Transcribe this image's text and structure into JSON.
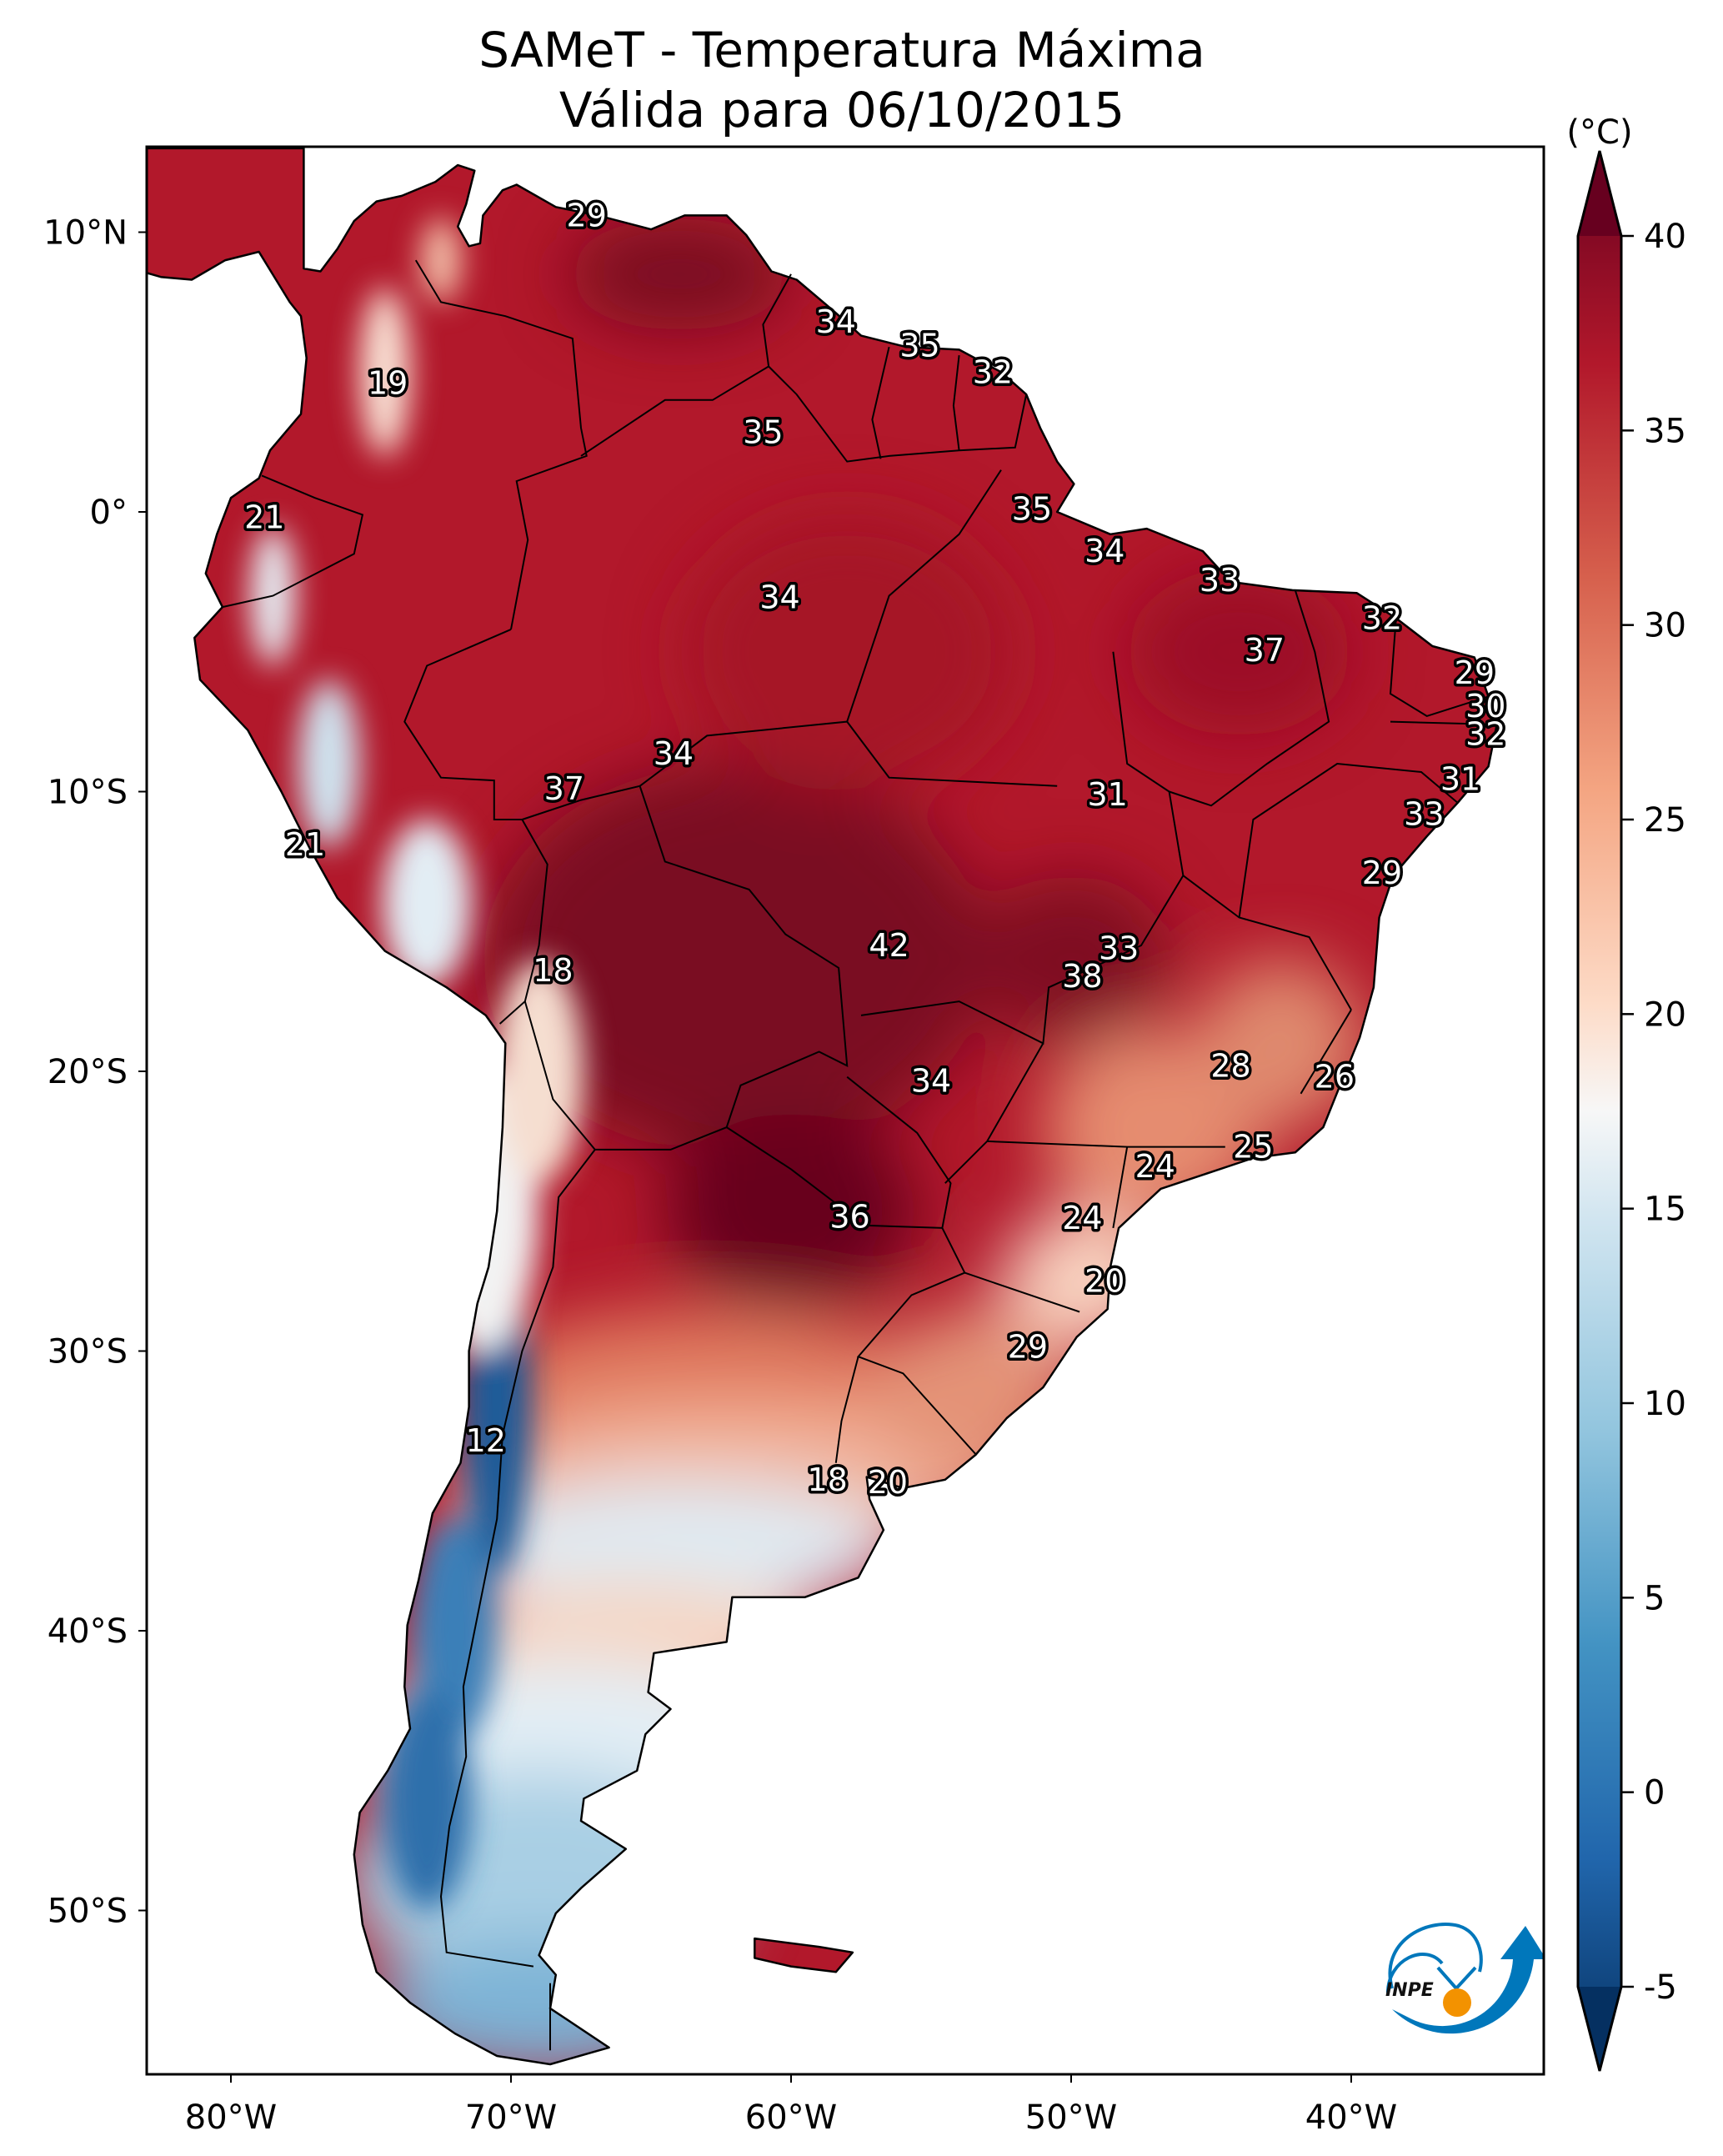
{
  "chart_data": {
    "type": "heatmap",
    "subtype": "geographic-map",
    "title": "SAMeT - Temperatura Máxima",
    "subtitle": "Válida para 06/10/2015",
    "colorbar": {
      "label": "(°C)",
      "min": -5,
      "max": 40,
      "ticks": [
        40,
        35,
        30,
        25,
        20,
        15,
        10,
        5,
        0,
        -5
      ],
      "tick_labels": [
        "40",
        "35",
        "30",
        "25",
        "20",
        "15",
        "10",
        "5",
        "0",
        "-5"
      ],
      "extend": "both",
      "colormap": "RdBu_r",
      "colors": {
        "-5": "#053061",
        "0": "#2166ac",
        "5": "#4393c3",
        "10": "#92c5de",
        "15": "#d1e5f0",
        "17.5": "#f7f7f7",
        "20": "#fddbc7",
        "25": "#f4a582",
        "30": "#d6604d",
        "35": "#b2182b",
        "40": "#67001f"
      }
    },
    "x_axis": {
      "range_lon": [
        -83,
        -33
      ],
      "ticks": [
        -80,
        -70,
        -60,
        -50,
        -40
      ],
      "tick_labels": [
        "80°W",
        "70°W",
        "60°W",
        "50°W",
        "40°W"
      ]
    },
    "y_axis": {
      "range_lat": [
        13,
        -56
      ],
      "ticks": [
        10,
        0,
        -10,
        -20,
        -30,
        -40,
        -50
      ],
      "tick_labels": [
        "10°N",
        "0°",
        "10°S",
        "20°S",
        "30°S",
        "40°S",
        "50°S"
      ]
    },
    "grid": false,
    "point_labels": [
      {
        "value": 29,
        "lon": -67.3,
        "lat": 10.6
      },
      {
        "value": 34,
        "lon": -58.4,
        "lat": 6.8
      },
      {
        "value": 35,
        "lon": -55.4,
        "lat": 5.95
      },
      {
        "value": 32,
        "lon": -52.8,
        "lat": 5.0
      },
      {
        "value": 19,
        "lon": -74.4,
        "lat": 4.6
      },
      {
        "value": 35,
        "lon": -61.0,
        "lat": 2.85
      },
      {
        "value": 21,
        "lon": -78.8,
        "lat": -0.2
      },
      {
        "value": 35,
        "lon": -51.4,
        "lat": 0.1
      },
      {
        "value": 34,
        "lon": -48.8,
        "lat": -1.4
      },
      {
        "value": 34,
        "lon": -60.4,
        "lat": -3.05
      },
      {
        "value": 33,
        "lon": -44.7,
        "lat": -2.45
      },
      {
        "value": 32,
        "lon": -38.9,
        "lat": -3.8
      },
      {
        "value": 37,
        "lon": -43.1,
        "lat": -4.95
      },
      {
        "value": 29,
        "lon": -35.6,
        "lat": -5.75
      },
      {
        "value": 30,
        "lon": -35.2,
        "lat": -6.95
      },
      {
        "value": 32,
        "lon": -35.2,
        "lat": -7.95
      },
      {
        "value": 34,
        "lon": -64.2,
        "lat": -8.65
      },
      {
        "value": 37,
        "lon": -68.1,
        "lat": -9.9
      },
      {
        "value": 31,
        "lon": -48.7,
        "lat": -10.1
      },
      {
        "value": 31,
        "lon": -36.1,
        "lat": -9.55
      },
      {
        "value": 33,
        "lon": -37.4,
        "lat": -10.8
      },
      {
        "value": 21,
        "lon": -77.35,
        "lat": -11.9
      },
      {
        "value": 29,
        "lon": -38.9,
        "lat": -12.9
      },
      {
        "value": 42,
        "lon": -56.5,
        "lat": -15.5
      },
      {
        "value": 33,
        "lon": -48.3,
        "lat": -15.6
      },
      {
        "value": 18,
        "lon": -68.5,
        "lat": -16.4
      },
      {
        "value": 38,
        "lon": -49.6,
        "lat": -16.6
      },
      {
        "value": 28,
        "lon": -44.3,
        "lat": -19.8
      },
      {
        "value": 26,
        "lon": -40.6,
        "lat": -20.2
      },
      {
        "value": 34,
        "lon": -55.0,
        "lat": -20.35
      },
      {
        "value": 25,
        "lon": -43.5,
        "lat": -22.7
      },
      {
        "value": 24,
        "lon": -47.0,
        "lat": -23.4
      },
      {
        "value": 36,
        "lon": -57.9,
        "lat": -25.2
      },
      {
        "value": 24,
        "lon": -49.6,
        "lat": -25.25
      },
      {
        "value": 20,
        "lon": -48.8,
        "lat": -27.5
      },
      {
        "value": 29,
        "lon": -51.55,
        "lat": -29.85
      },
      {
        "value": 12,
        "lon": -70.9,
        "lat": -33.2
      },
      {
        "value": 18,
        "lon": -58.7,
        "lat": -34.6
      },
      {
        "value": 20,
        "lon": -56.55,
        "lat": -34.7
      }
    ]
  },
  "logo": {
    "text": "INPE",
    "colors": {
      "arc": "#0077bb",
      "sun": "#f39200",
      "text": "#111111"
    }
  }
}
